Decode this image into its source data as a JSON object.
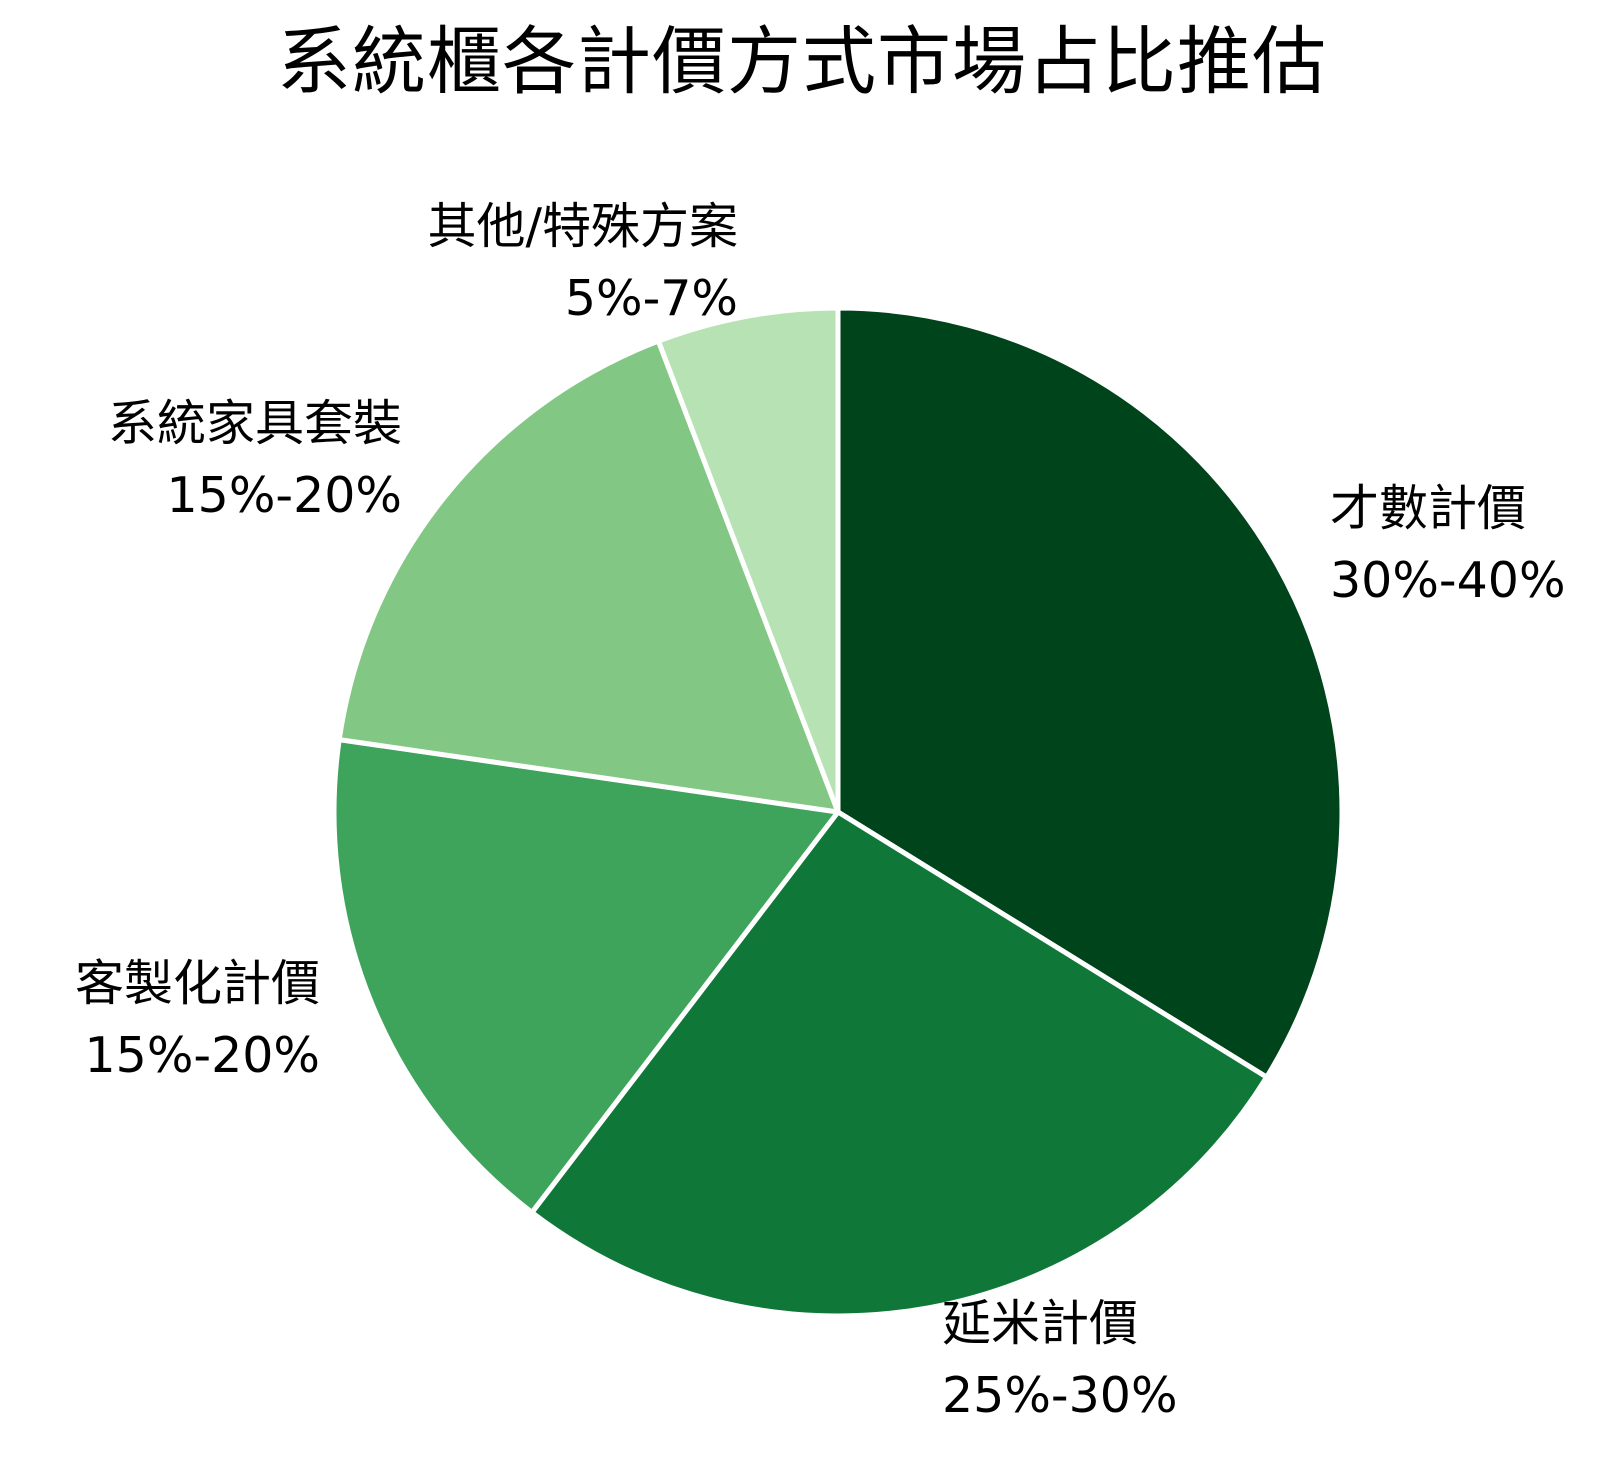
{
  "chart_data": {
    "type": "pie",
    "title": "系統櫃各計價方式市場占比推估",
    "slices": [
      {
        "label": "才數計價",
        "range_text": "30%-40%",
        "value": 35,
        "color": "#00441b"
      },
      {
        "label": "延米計價",
        "range_text": "25%-30%",
        "value": 27.5,
        "color": "#0f7738"
      },
      {
        "label": "客製化計價",
        "range_text": "15%-20%",
        "value": 17.5,
        "color": "#3ea45c"
      },
      {
        "label": "系統家具套裝",
        "range_text": "15%-20%",
        "value": 17.5,
        "color": "#82c884"
      },
      {
        "label": "其他/特殊方案",
        "range_text": "5%-7%",
        "value": 6,
        "color": "#b7e2b3"
      }
    ],
    "start_angle": "top (12 o'clock)",
    "direction": "clockwise",
    "legend": "none (labels placed outside slices)"
  }
}
